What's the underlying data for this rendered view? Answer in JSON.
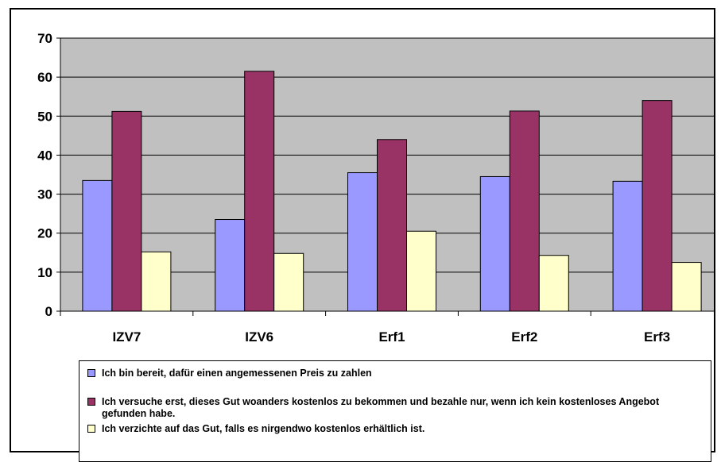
{
  "chart_data": {
    "type": "bar",
    "categories": [
      "IZV7",
      "IZV6",
      "Erf1",
      "Erf2",
      "Erf3"
    ],
    "series": [
      {
        "name": "Ich bin bereit, dafür einen angemessenen Preis zu zahlen",
        "color": "#9999FF",
        "values": [
          33.5,
          23.5,
          35.5,
          34.5,
          33.3
        ]
      },
      {
        "name": "Ich versuche erst, dieses Gut woanders kostenlos zu bekommen und bezahle nur, wenn ich kein kostenloses Angebot gefunden habe.",
        "color": "#993366",
        "values": [
          51.2,
          61.5,
          44.0,
          51.3,
          54.0
        ]
      },
      {
        "name": "Ich verzichte auf das Gut, falls es nirgendwo kostenlos erhältlich ist.",
        "color": "#FFFFCC",
        "values": [
          15.2,
          14.8,
          20.5,
          14.3,
          12.5
        ]
      }
    ],
    "ylim": [
      0,
      70
    ],
    "yticks": [
      "0",
      "10",
      "20",
      "30",
      "40",
      "50",
      "60",
      "70"
    ],
    "grid": true,
    "plot_background": "#C0C0C0",
    "legend_position": "bottom"
  }
}
